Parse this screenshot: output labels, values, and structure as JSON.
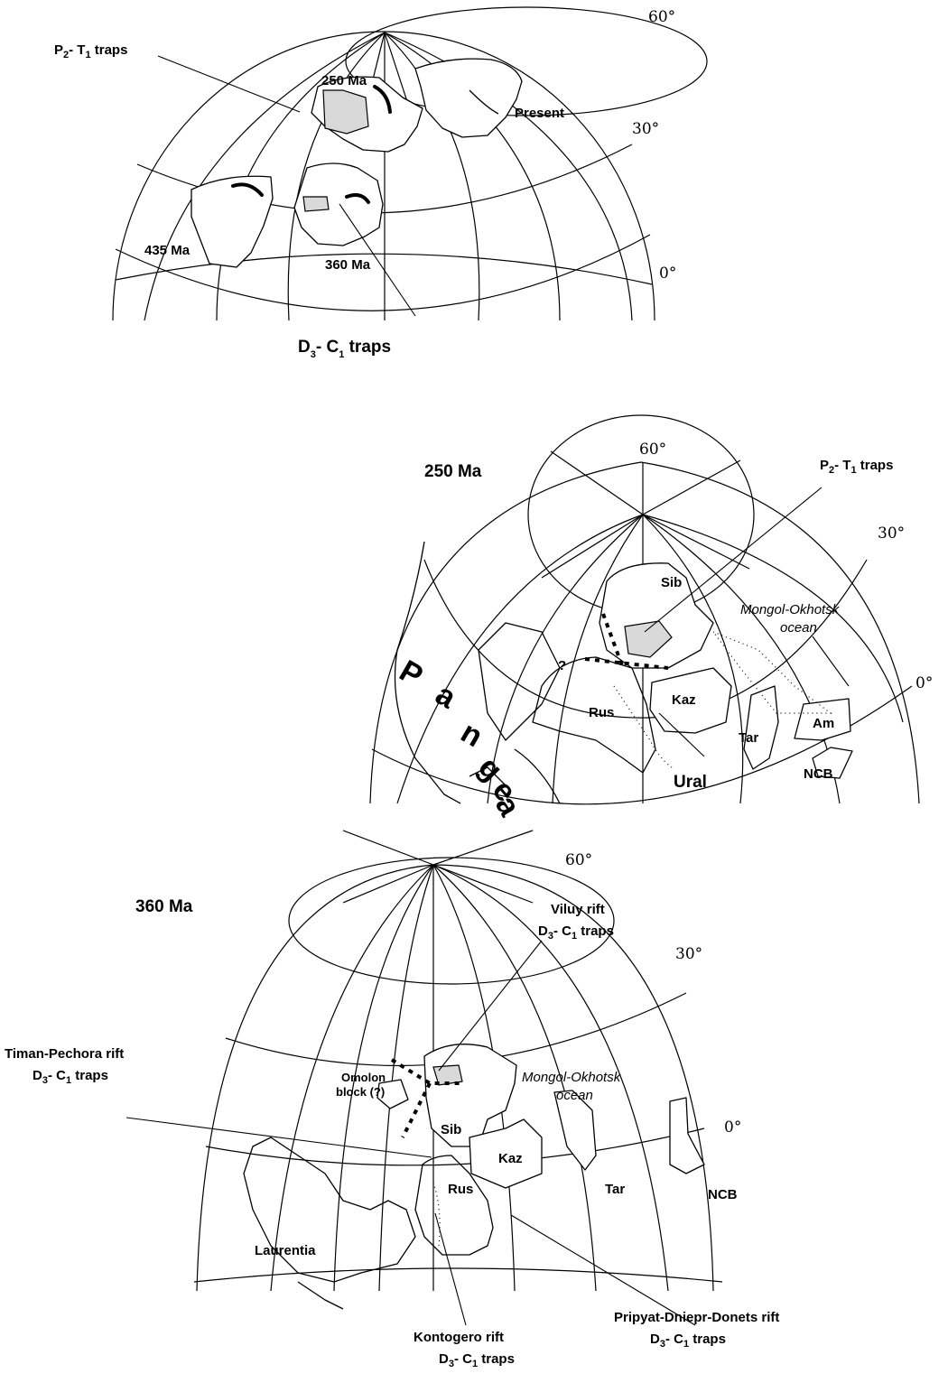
{
  "panel_top": {
    "lat_labels": [
      "60°",
      "30°",
      "0°"
    ],
    "age_labels": [
      "250 Ma",
      "Present",
      "435 Ma",
      "360 Ma"
    ],
    "p2t1": {
      "a": "P",
      "a_sub": "2",
      "b": "- T",
      "b_sub": "1",
      "c": " traps"
    },
    "d3c1": {
      "a": "D",
      "a_sub": "3",
      "b": "- C",
      "b_sub": "1",
      "c": " traps"
    }
  },
  "panel_mid": {
    "title": "250 Ma",
    "lat_labels": [
      "60°",
      "30°",
      "0°"
    ],
    "p2t1": {
      "a": "P",
      "a_sub": "2",
      "b": "- T",
      "b_sub": "1",
      "c": " traps"
    },
    "blocks": [
      "Sib",
      "Kaz",
      "Rus",
      "Tar",
      "Am",
      "NCB",
      "Ural"
    ],
    "ocean_line1": "Mongol-Okhotsk",
    "ocean_line2": "ocean",
    "question": "?",
    "pangea_letters": [
      "P",
      "a",
      "n",
      "g",
      "e",
      "a"
    ]
  },
  "panel_bot": {
    "title": "360 Ma",
    "lat_labels": [
      "60°",
      "30°",
      "0°"
    ],
    "viluy_title": "Viluy rift",
    "timan_title": "Timan-Pechora rift",
    "kontogero_title": "Kontogero rift",
    "pripyat_title": "Pripyat-Dniepr-Donets rift",
    "traps": {
      "a": "D",
      "a_sub": "3",
      "b": "- C",
      "b_sub": "1",
      "c": " traps"
    },
    "omolon_line1": "Omolon",
    "omolon_line2": "block (?)",
    "ocean_line1": "Mongol-Okhotsk",
    "ocean_line2": "ocean",
    "blocks": [
      "Sib",
      "Kaz",
      "Rus",
      "Tar",
      "NCB",
      "Laurentia"
    ]
  }
}
